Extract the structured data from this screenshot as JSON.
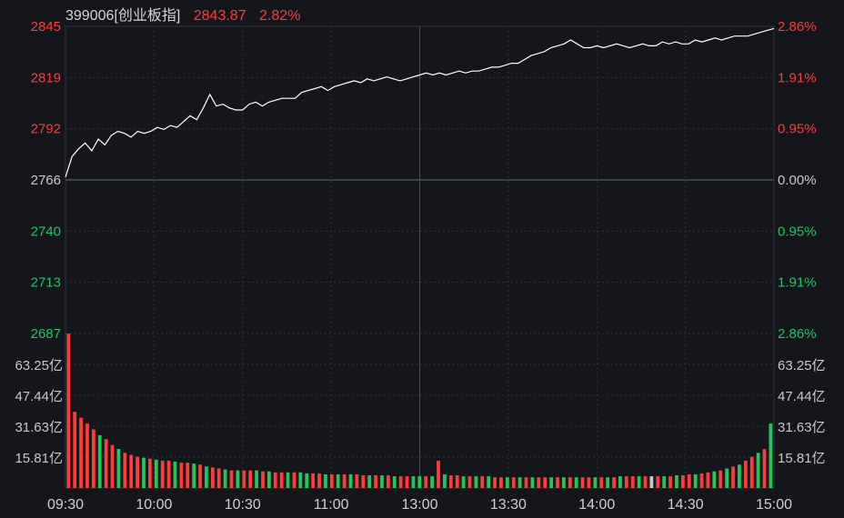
{
  "header": {
    "code_name": "399006[创业板指]",
    "price": "2843.87",
    "change_pct": "2.82%"
  },
  "colors": {
    "background": "#14161b",
    "grid": "#2e323b",
    "grid_strong": "#4a4f5a",
    "up": "#ff3a3a",
    "down": "#22c55e",
    "neutral": "#c8c8c8",
    "price_line": "#ffffff"
  },
  "chart_data": [
    {
      "type": "line",
      "title": "399006[创业板指]",
      "y_ticks_left": [
        "2845",
        "2819",
        "2792",
        "2766",
        "2740",
        "2713",
        "2687"
      ],
      "y_ticks_right": [
        "2.86%",
        "1.91%",
        "0.95%",
        "0.00%",
        "0.95%",
        "1.91%",
        "2.86%"
      ],
      "x_ticks": [
        "09:30",
        "10:00",
        "10:30",
        "11:00",
        "13:00",
        "13:30",
        "14:00",
        "14:30",
        "15:00"
      ],
      "ylim": [
        2687,
        2845
      ],
      "prev_close": 2766,
      "series": [
        {
          "values": [
            2767.5,
            2778,
            2782,
            2785,
            2781,
            2787,
            2784,
            2789,
            2791,
            2790,
            2788,
            2791,
            2790,
            2791,
            2793,
            2792,
            2794,
            2793,
            2796,
            2799,
            2797,
            2803,
            2810,
            2804,
            2805,
            2803,
            2802,
            2802,
            2805,
            2806,
            2804,
            2806,
            2807,
            2808,
            2808,
            2808,
            2811,
            2812,
            2813,
            2814,
            2812,
            2814,
            2815,
            2816,
            2817,
            2816,
            2818,
            2817,
            2818,
            2819,
            2818,
            2817,
            2818,
            2819,
            2820,
            2821,
            2820,
            2821,
            2820,
            2821,
            2822,
            2821,
            2822,
            2822,
            2823,
            2824,
            2824,
            2825,
            2826,
            2826,
            2828,
            2830,
            2831,
            2832,
            2834,
            2835,
            2836,
            2838,
            2836,
            2834,
            2834,
            2835,
            2834,
            2835,
            2836,
            2835,
            2834,
            2835,
            2836,
            2835,
            2835,
            2837,
            2836,
            2837,
            2836,
            2836,
            2838,
            2837,
            2838,
            2839,
            2838,
            2839,
            2840,
            2840,
            2840,
            2841,
            2842,
            2843,
            2843.9
          ]
        }
      ]
    },
    {
      "type": "bar",
      "title": "",
      "y_ticks": [
        "63.25亿",
        "47.44亿",
        "31.63亿",
        "15.81亿"
      ],
      "ylim": [
        0,
        79.06
      ],
      "unit": "亿",
      "series": [
        {
          "values": [
            79,
            39,
            36,
            33,
            30,
            27,
            25,
            22,
            20,
            18,
            17,
            16,
            15.5,
            15,
            14.5,
            14,
            14,
            13.5,
            13,
            13,
            12.5,
            12,
            11,
            10.5,
            10,
            9.5,
            9,
            9,
            9,
            9,
            9,
            8.5,
            8.5,
            8,
            8,
            8,
            8,
            8,
            7.5,
            7.5,
            7.5,
            7,
            7,
            7,
            7,
            7,
            7,
            6.5,
            6.5,
            6.5,
            6.5,
            6.5,
            6,
            6,
            6,
            6,
            6,
            6,
            6,
            14,
            7,
            6.5,
            6.5,
            6,
            6,
            6,
            6,
            6,
            5.5,
            5.5,
            5.5,
            5.5,
            5.5,
            5.5,
            5.5,
            5.5,
            5.5,
            5.5,
            5.5,
            5.5,
            5.5,
            5.5,
            5.5,
            5.5,
            5.5,
            5.5,
            5.5,
            5.5,
            6,
            6,
            6,
            6,
            6,
            6,
            6,
            6,
            6,
            6.5,
            6.5,
            7,
            7,
            7.5,
            8,
            8.5,
            9,
            10,
            11,
            12,
            14,
            16,
            18,
            20,
            33
          ],
          "colors": [
            "up",
            "up",
            "up",
            "up",
            "up",
            "down",
            "up",
            "up",
            "down",
            "up",
            "up",
            "up",
            "down",
            "up",
            "down",
            "up",
            "up",
            "down",
            "up",
            "up",
            "down",
            "up",
            "down",
            "up",
            "up",
            "down",
            "up",
            "down",
            "up",
            "up",
            "down",
            "up",
            "down",
            "up",
            "up",
            "down",
            "up",
            "down",
            "down",
            "up",
            "up",
            "down",
            "up",
            "down",
            "up",
            "down",
            "up",
            "up",
            "down",
            "up",
            "down",
            "up",
            "down",
            "up",
            "up",
            "down",
            "down",
            "up",
            "down",
            "up",
            "down",
            "up",
            "up",
            "down",
            "up",
            "down",
            "up",
            "down",
            "up",
            "up",
            "down",
            "up",
            "down",
            "up",
            "down",
            "up",
            "up",
            "down",
            "up",
            "down",
            "up",
            "down",
            "up",
            "up",
            "down",
            "up",
            "down",
            "up",
            "down",
            "up",
            "up",
            "down",
            "up",
            "neutral",
            "up",
            "down",
            "up",
            "down",
            "up",
            "up",
            "down",
            "up",
            "up",
            "down",
            "up",
            "down",
            "up",
            "down",
            "up",
            "up",
            "down",
            "up",
            "down"
          ]
        }
      ]
    }
  ]
}
